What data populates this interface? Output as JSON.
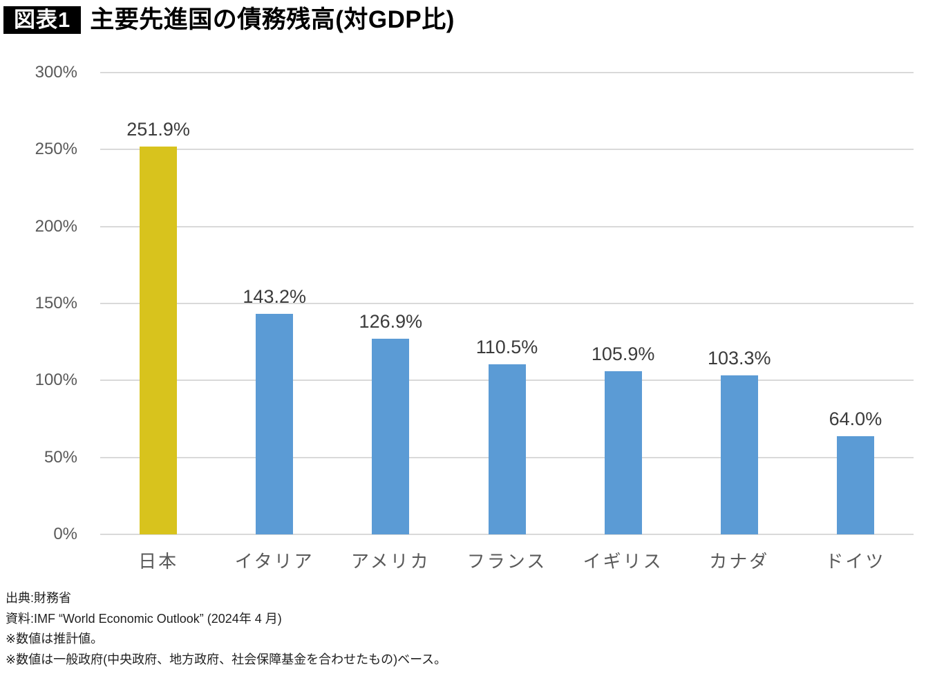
{
  "header": {
    "badge_label": "図表1",
    "title": "主要先進国の債務残高(対GDP比)"
  },
  "chart_data": {
    "type": "bar",
    "title": "主要先進国の債務残高(対GDP比)",
    "categories": [
      "日本",
      "イタリア",
      "アメリカ",
      "フランス",
      "イギリス",
      "カナダ",
      "ドイツ"
    ],
    "category_keys": [
      "japan",
      "italy",
      "usa",
      "france",
      "uk",
      "canada",
      "germany"
    ],
    "values": [
      251.9,
      143.2,
      126.9,
      110.5,
      105.9,
      103.3,
      64.0
    ],
    "value_labels": [
      "251.9%",
      "143.2%",
      "126.9%",
      "110.5%",
      "105.9%",
      "103.3%",
      "64.0%"
    ],
    "bar_colors": [
      "#d8c31d",
      "#5b9bd5",
      "#5b9bd5",
      "#5b9bd5",
      "#5b9bd5",
      "#5b9bd5",
      "#5b9bd5"
    ],
    "highlight_color": "#d8c31d",
    "default_color": "#5b9bd5",
    "xlabel": "",
    "ylabel": "",
    "ylim": [
      0,
      300
    ],
    "yticks": [
      0,
      50,
      100,
      150,
      200,
      250,
      300
    ],
    "ytick_labels": [
      "0%",
      "50%",
      "100%",
      "150%",
      "200%",
      "250%",
      "300%"
    ],
    "grid": true,
    "gridline_color": "#d9d9d9",
    "legend": "none"
  },
  "footer": {
    "lines": [
      "出典:財務省",
      "資料:IMF “World Economic Outlook” (2024年 4 月)",
      "※数値は推計値。",
      "※数値は一般政府(中央政府、地方政府、社会保障基金を合わせたもの)ベース。"
    ]
  },
  "colors": {
    "badge_background": "#000000",
    "badge_text": "#ffffff",
    "axis_label": "#595959",
    "value_label": "#3b3b3b"
  }
}
